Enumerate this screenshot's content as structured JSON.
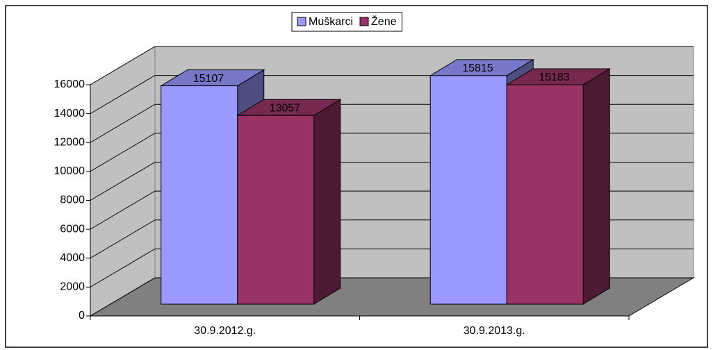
{
  "chart_data": {
    "type": "bar3d",
    "categories": [
      "30.9.2012.g.",
      "30.9.2013.g."
    ],
    "series": [
      {
        "name": "Muškarci",
        "color": "#9999ff",
        "values": [
          15107,
          15815
        ]
      },
      {
        "name": "Žene",
        "color": "#993366",
        "values": [
          13057,
          15183
        ]
      }
    ],
    "ylim": [
      0,
      16000
    ],
    "yticks": [
      0,
      2000,
      4000,
      6000,
      8000,
      10000,
      12000,
      14000,
      16000
    ],
    "grid": true,
    "legend": "top"
  }
}
